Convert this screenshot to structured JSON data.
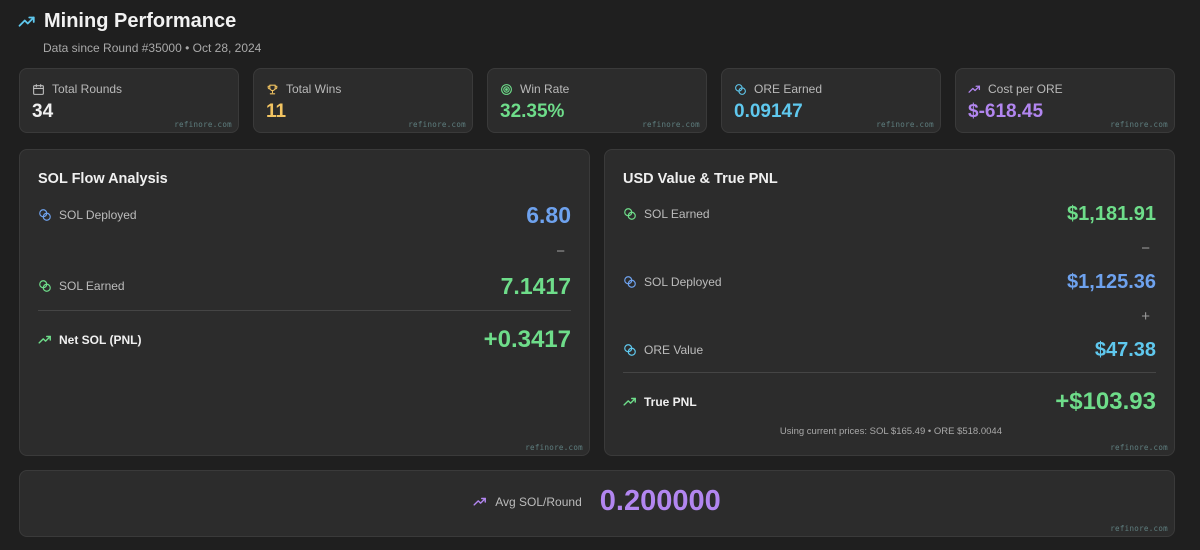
{
  "header": {
    "title": "Mining Performance",
    "subtitle": "Data since Round #35000 • Oct 28, 2024"
  },
  "watermark": "refinore.com",
  "stats": [
    {
      "label": "Total Rounds",
      "value": "34",
      "icon": "calendar-icon",
      "color": "#f0f0f0"
    },
    {
      "label": "Total Wins",
      "value": "11",
      "icon": "trophy-icon",
      "color": "#f2c462"
    },
    {
      "label": "Win Rate",
      "value": "32.35%",
      "icon": "target-icon",
      "color": "#6edd8a"
    },
    {
      "label": "ORE Earned",
      "value": "0.09147",
      "icon": "coins-icon",
      "color": "#5fc8ee"
    },
    {
      "label": "Cost per ORE",
      "value": "$-618.45",
      "icon": "trend-up-icon",
      "color": "#b286f0"
    }
  ],
  "sol_flow": {
    "title": "SOL Flow Analysis",
    "deployed_label": "SOL Deployed",
    "deployed_value": "6.80",
    "minus": "−",
    "earned_label": "SOL Earned",
    "earned_value": "7.1417",
    "net_label": "Net SOL (PNL)",
    "net_value": "+0.3417"
  },
  "usd_value": {
    "title": "USD Value & True PNL",
    "earned_label": "SOL Earned",
    "earned_value": "$1,181.91",
    "minus": "−",
    "deployed_label": "SOL Deployed",
    "deployed_value": "$1,125.36",
    "plus": "+",
    "ore_label": "ORE Value",
    "ore_value": "$47.38",
    "pnl_label": "True PNL",
    "pnl_value": "+$103.93",
    "note": "Using current prices: SOL $165.49 • ORE $518.0044"
  },
  "avg": {
    "label": "Avg SOL/Round",
    "value": "0.200000"
  },
  "colors": {
    "green": "#6edd8a",
    "blue": "#6ea2ee",
    "cyan": "#5fc8ee",
    "purple": "#b286f0",
    "gold": "#f2c462"
  }
}
